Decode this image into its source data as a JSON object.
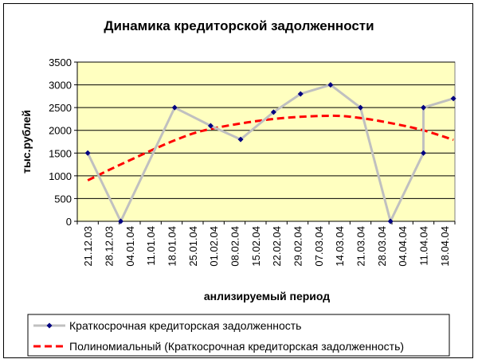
{
  "chart_data": {
    "type": "line",
    "title": "Динамика  кредиторской  задолженности",
    "xlabel": "анлизируемый  период",
    "ylabel": "тыс.рублей",
    "ylim": [
      0,
      3500
    ],
    "yticks": [
      "0",
      "500",
      "1000",
      "1500",
      "2000",
      "2500",
      "3000",
      "3500"
    ],
    "categories": [
      "21.12.03",
      "28.12.03",
      "04.01.04",
      "11.01.04",
      "18.01.04",
      "25.01.04",
      "01.02.04",
      "08.02.04",
      "15.02.04",
      "22.02.04",
      "29.02.04",
      "07.03.04",
      "14.03.04",
      "21.03.04",
      "28.03.04",
      "04.04.04",
      "11.04.04",
      "18.04.04"
    ],
    "plot_background": "#ffffc0",
    "grid": "horizontal",
    "legend_position": "bottom",
    "series": [
      {
        "name": "Краткосрочная  кредиторская задолженность",
        "color": "#c0c0c0",
        "marker_color": "#000080",
        "points": [
          {
            "x": "21.12.03",
            "y": 1500
          },
          {
            "x": "01.01.04",
            "y": 0
          },
          {
            "x": "19.01.04",
            "y": 2500
          },
          {
            "x": "31.01.04",
            "y": 2100
          },
          {
            "x": "10.02.04",
            "y": 1800
          },
          {
            "x": "21.02.04",
            "y": 2400
          },
          {
            "x": "01.03.04",
            "y": 2800
          },
          {
            "x": "11.03.04",
            "y": 3000
          },
          {
            "x": "21.03.04",
            "y": 2500
          },
          {
            "x": "31.03.04",
            "y": 0
          },
          {
            "x": "11.04.04",
            "y": 1500
          },
          {
            "x": "11.04.04",
            "y": 2500
          },
          {
            "x": "21.04.04",
            "y": 2700
          }
        ]
      },
      {
        "name": "Полиномиальный (Краткосрочная  кредиторская задолженность)",
        "color": "#ff0000",
        "style": "dashed",
        "points": [
          {
            "x": "21.12.03",
            "y": 900
          },
          {
            "x": "01.01.04",
            "y": 1250
          },
          {
            "x": "19.01.04",
            "y": 1780
          },
          {
            "x": "31.01.04",
            "y": 2030
          },
          {
            "x": "21.02.04",
            "y": 2250
          },
          {
            "x": "11.03.04",
            "y": 2320
          },
          {
            "x": "21.03.04",
            "y": 2270
          },
          {
            "x": "31.03.04",
            "y": 2160
          },
          {
            "x": "11.04.04",
            "y": 2000
          },
          {
            "x": "21.04.04",
            "y": 1790
          }
        ]
      }
    ]
  }
}
